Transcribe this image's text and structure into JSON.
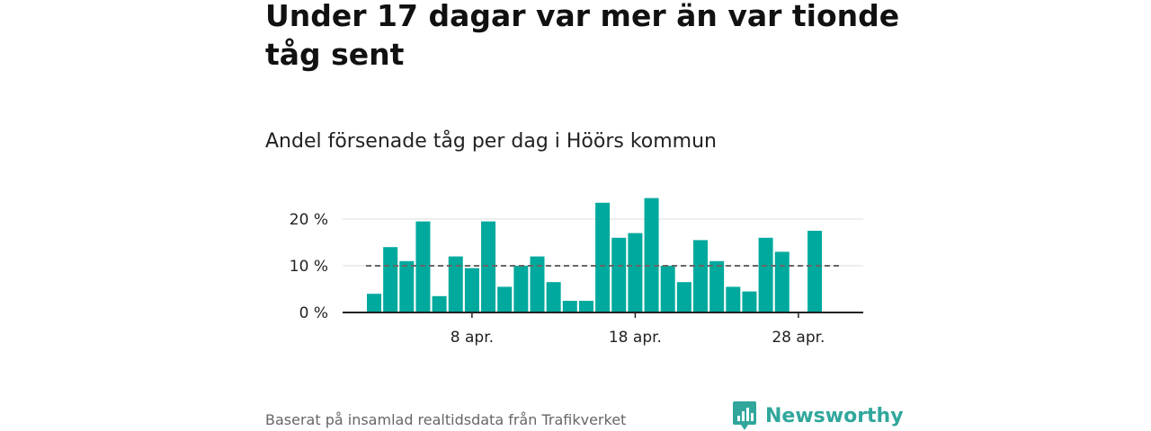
{
  "headline": "Under 17 dagar var mer än var tionde tåg sent",
  "subtitle": "Andel försenade tåg per dag i Höörs kommun",
  "footer": {
    "source": "Baserat på insamlad realtidsdata från Trafikverket",
    "brand": "Newsworthy",
    "brand_icon": "newsworthy-bar-chart-logo-icon"
  },
  "colors": {
    "bar": "#00a99d",
    "reference_line": "#666666",
    "grid": "#dddddd",
    "axis": "#222222",
    "brand": "#31a79c"
  },
  "chart_data": {
    "type": "bar",
    "title": "Andel försenade tåg per dag i Höörs kommun",
    "xlabel": "",
    "ylabel": "",
    "x": [
      "2 apr.",
      "3 apr.",
      "4 apr.",
      "5 apr.",
      "6 apr.",
      "7 apr.",
      "8 apr.",
      "9 apr.",
      "10 apr.",
      "11 apr.",
      "12 apr.",
      "13 apr.",
      "14 apr.",
      "15 apr.",
      "16 apr.",
      "17 apr.",
      "18 apr.",
      "19 apr.",
      "20 apr.",
      "21 apr.",
      "22 apr.",
      "23 apr.",
      "24 apr.",
      "25 apr.",
      "26 apr.",
      "27 apr.",
      "28 apr.",
      "29 apr."
    ],
    "values": [
      4,
      14,
      11,
      19.5,
      3.5,
      12,
      9.5,
      19.5,
      5.5,
      10,
      12,
      6.5,
      2.5,
      2.5,
      23.5,
      16,
      17,
      24.5,
      10,
      6.5,
      15.5,
      11,
      5.5,
      4.5,
      16,
      13,
      null,
      17.5
    ],
    "x_ticks": [
      "8 apr.",
      "18 apr.",
      "28 apr."
    ],
    "y_ticks": [
      0,
      10,
      20
    ],
    "y_tick_labels": [
      "0 %",
      "10 %",
      "20 %"
    ],
    "ylim": [
      0,
      25
    ],
    "reference_line": 10,
    "grid": true,
    "legend": "none"
  }
}
